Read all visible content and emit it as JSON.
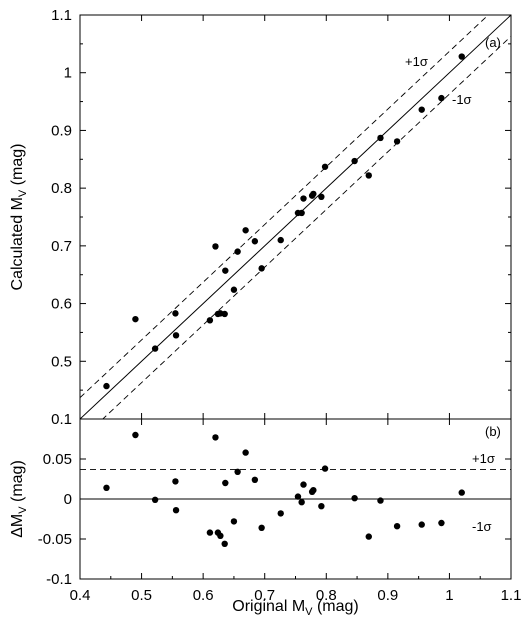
{
  "chart_data": [
    {
      "panel_label": "(a)",
      "type": "scatter",
      "xlabel": "Original M_V (mag)",
      "ylabel": "Calculated M_V (mag)",
      "xlim": [
        0.4,
        1.1
      ],
      "ylim": [
        0.4,
        1.1
      ],
      "xticks": [
        "0.4",
        "0.5",
        "0.6",
        "0.7",
        "0.8",
        "0.9",
        "1",
        "1.1"
      ],
      "yticks": [
        "0.5",
        "0.6",
        "0.7",
        "0.8",
        "0.9",
        "1",
        "1.1"
      ],
      "ytick_bottom": "0.1",
      "annotations": {
        "plus_sigma": "+1σ",
        "minus_sigma": "-1σ"
      },
      "sigma": 0.037,
      "lines": [
        "y = x (solid)",
        "y = x + σ (dashed)",
        "y = x − σ (dashed)"
      ],
      "points": [
        [
          0.443,
          0.457
        ],
        [
          0.49,
          0.573
        ],
        [
          0.522,
          0.522
        ],
        [
          0.555,
          0.583
        ],
        [
          0.556,
          0.545
        ],
        [
          0.611,
          0.571
        ],
        [
          0.62,
          0.699
        ],
        [
          0.624,
          0.582
        ],
        [
          0.628,
          0.583
        ],
        [
          0.635,
          0.582
        ],
        [
          0.636,
          0.657
        ],
        [
          0.65,
          0.624
        ],
        [
          0.656,
          0.69
        ],
        [
          0.669,
          0.727
        ],
        [
          0.684,
          0.708
        ],
        [
          0.695,
          0.661
        ],
        [
          0.726,
          0.71
        ],
        [
          0.754,
          0.757
        ],
        [
          0.76,
          0.757
        ],
        [
          0.763,
          0.782
        ],
        [
          0.777,
          0.787
        ],
        [
          0.779,
          0.79
        ],
        [
          0.792,
          0.785
        ],
        [
          0.798,
          0.837
        ],
        [
          0.846,
          0.847
        ],
        [
          0.869,
          0.822
        ],
        [
          0.888,
          0.887
        ],
        [
          0.915,
          0.881
        ],
        [
          0.955,
          0.936
        ],
        [
          0.987,
          0.956
        ],
        [
          1.02,
          1.028
        ]
      ]
    },
    {
      "panel_label": "(b)",
      "type": "scatter",
      "xlabel": "Original M_V (mag)",
      "ylabel": "ΔM_V (mag)",
      "xlim": [
        0.4,
        1.1
      ],
      "ylim": [
        -0.1,
        0.1
      ],
      "yticks": [
        "-0.1",
        "-0.05",
        "0",
        "0.05"
      ],
      "annotations": {
        "plus_sigma": "+1σ",
        "minus_sigma": "-1σ"
      },
      "sigma": 0.037,
      "points": [
        [
          0.443,
          0.014
        ],
        [
          0.49,
          0.08
        ],
        [
          0.522,
          -0.001
        ],
        [
          0.555,
          0.022
        ],
        [
          0.556,
          -0.014
        ],
        [
          0.611,
          -0.042
        ],
        [
          0.62,
          0.077
        ],
        [
          0.624,
          -0.042
        ],
        [
          0.628,
          -0.046
        ],
        [
          0.635,
          -0.056
        ],
        [
          0.636,
          0.02
        ],
        [
          0.65,
          -0.028
        ],
        [
          0.656,
          0.034
        ],
        [
          0.669,
          0.058
        ],
        [
          0.684,
          0.024
        ],
        [
          0.695,
          -0.036
        ],
        [
          0.726,
          -0.018
        ],
        [
          0.754,
          0.003
        ],
        [
          0.76,
          -0.004
        ],
        [
          0.763,
          0.018
        ],
        [
          0.777,
          0.009
        ],
        [
          0.779,
          0.011
        ],
        [
          0.792,
          -0.009
        ],
        [
          0.798,
          0.038
        ],
        [
          0.846,
          0.001
        ],
        [
          0.869,
          -0.047
        ],
        [
          0.888,
          -0.002
        ],
        [
          0.915,
          -0.034
        ],
        [
          0.955,
          -0.032
        ],
        [
          0.987,
          -0.03
        ],
        [
          1.02,
          0.008
        ]
      ]
    }
  ]
}
